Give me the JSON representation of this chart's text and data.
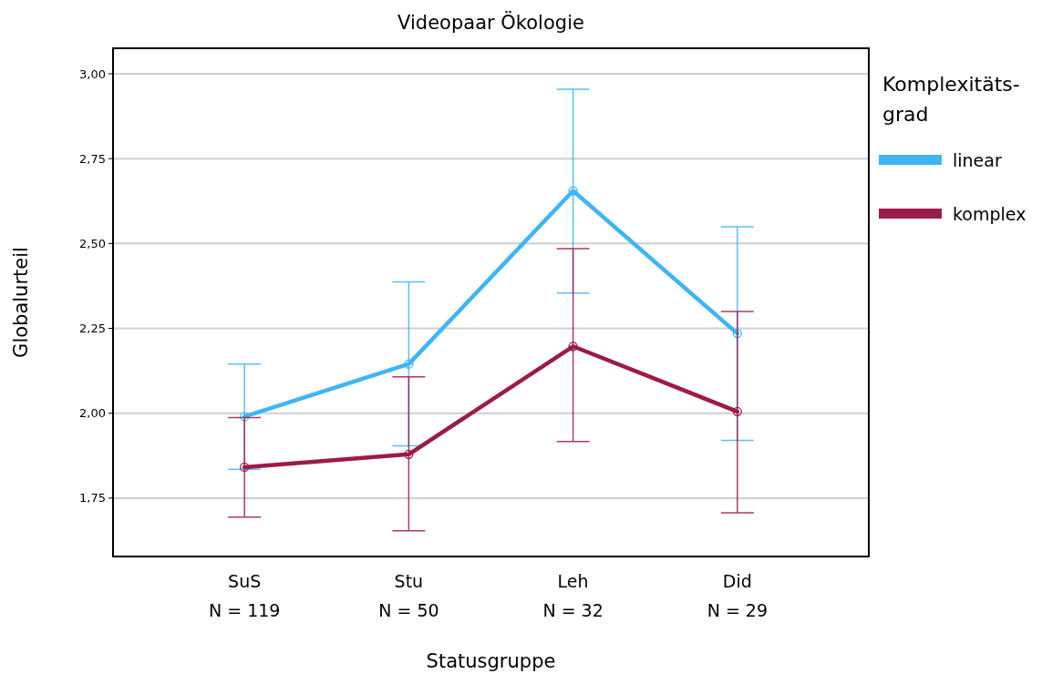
{
  "chart_data": {
    "type": "line",
    "title": "Videopaar Ökologie",
    "xlabel": "Statusgruppe",
    "ylabel": "Globalurteil",
    "legend_title": "Komplexitäts-\ngrad",
    "categories": [
      "SuS\nN = 119",
      "Stu\nN = 50",
      "Leh\nN = 32",
      "Did\nN = 29"
    ],
    "series": [
      {
        "name": "linear",
        "color": "#3fb5f5",
        "values": [
          1.99,
          2.145,
          2.655,
          2.235
        ],
        "errors": [
          [
            1.835,
            2.145
          ],
          [
            1.904,
            2.387
          ],
          [
            2.354,
            2.954
          ],
          [
            1.92,
            2.549
          ]
        ]
      },
      {
        "name": "komplex",
        "color": "#9b1b4a",
        "values": [
          1.841,
          1.879,
          2.197,
          2.005
        ],
        "errors": [
          [
            1.694,
            1.987
          ],
          [
            1.654,
            2.107
          ],
          [
            1.917,
            2.485
          ],
          [
            1.707,
            2.3
          ]
        ]
      }
    ],
    "ylim": [
      1.578,
      3.075
    ],
    "yticks": [
      {
        "value": 1.75,
        "label": "1,75"
      },
      {
        "value": 2,
        "label": "2,00"
      },
      {
        "value": 2.25,
        "label": "2,25"
      },
      {
        "value": 2.5,
        "label": "2,50"
      },
      {
        "value": 2.75,
        "label": "2,75"
      },
      {
        "value": 3,
        "label": "3,00"
      }
    ],
    "grid": "y",
    "legend": "right",
    "marker": "circle"
  }
}
